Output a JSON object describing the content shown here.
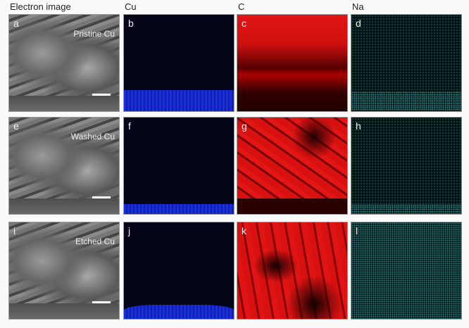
{
  "columns": [
    "Electron image",
    "Cu",
    "C",
    "Na"
  ],
  "rows": [
    {
      "condition": "Pristine Cu",
      "labels": [
        "a",
        "b",
        "c",
        "d"
      ]
    },
    {
      "condition": "Washed Cu",
      "labels": [
        "e",
        "f",
        "g",
        "h"
      ]
    },
    {
      "condition": "Etched Cu",
      "labels": [
        "i",
        "j",
        "k",
        "l"
      ]
    }
  ],
  "colors": {
    "Cu": "#1a2fd8",
    "C": "#d81010",
    "Na": "#2a8a8a"
  }
}
